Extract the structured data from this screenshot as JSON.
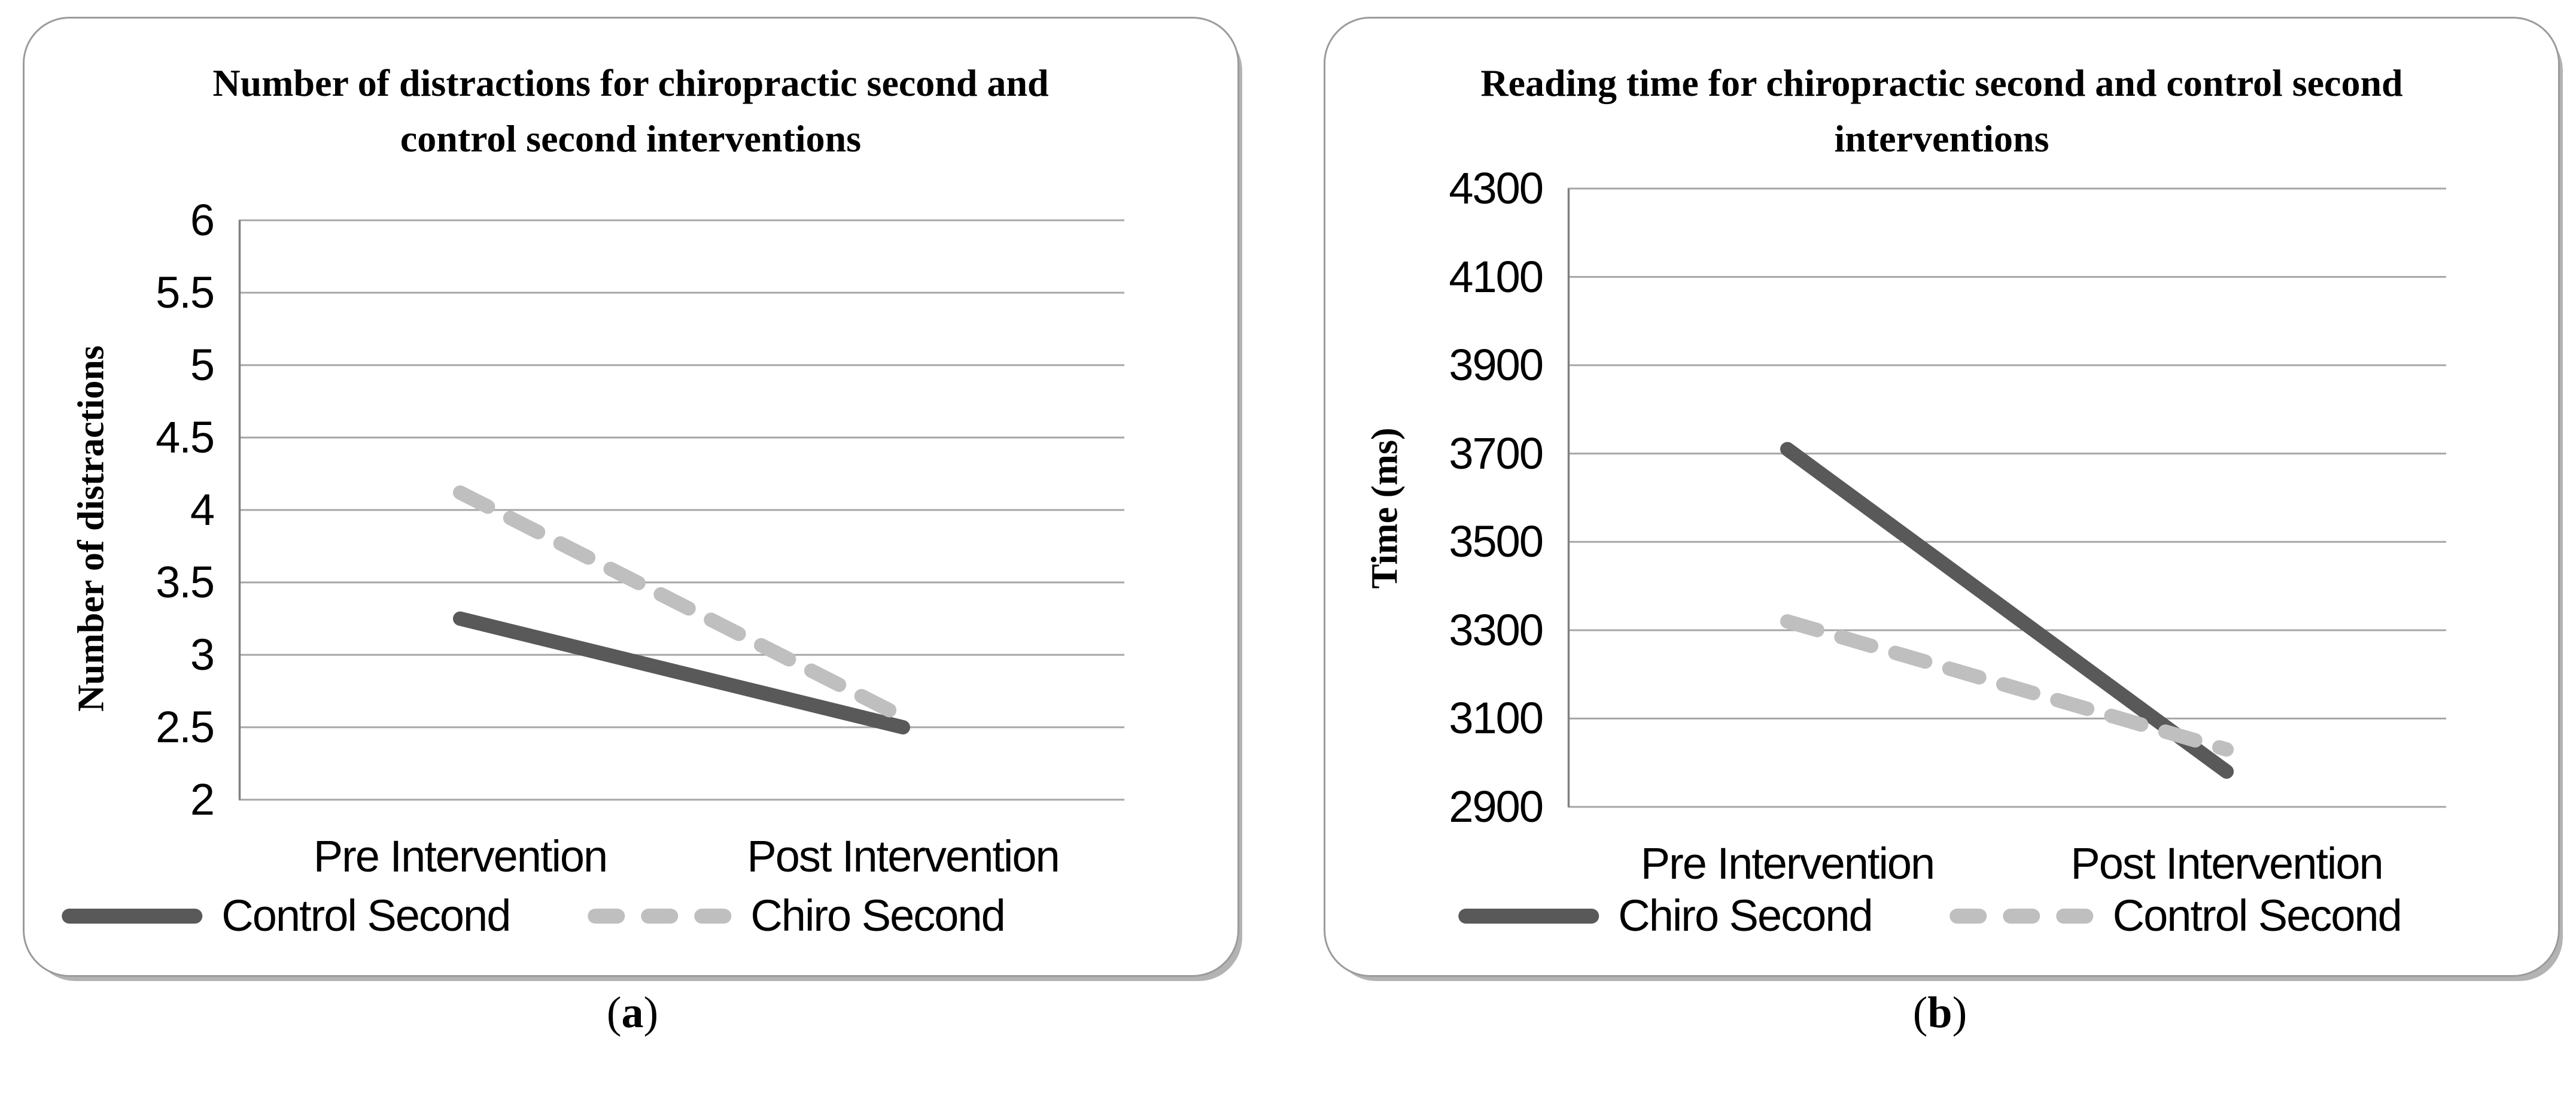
{
  "figure": {
    "captions": [
      {
        "open": "(",
        "letter": "a",
        "close": ")"
      },
      {
        "open": "(",
        "letter": "b",
        "close": ")"
      }
    ]
  },
  "colors": {
    "gridline": "#a6a6a6",
    "axis_line": "#808080",
    "dark_series": "#595959",
    "light_series": "#bfbfbf",
    "panel_border": "#9b9b9b",
    "text": "#000000"
  },
  "chart_data": [
    {
      "type": "line",
      "title": "Number of distractions for chiropractic second and control second interventions",
      "xlabel": "",
      "ylabel": "Number of distractions",
      "categories": [
        "Pre Intervention",
        "Post Intervention"
      ],
      "ylim": [
        2,
        6
      ],
      "ytick_step": 0.5,
      "ytick_labels": [
        "6",
        "5.5",
        "5",
        "4.5",
        "4",
        "3.5",
        "3",
        "2.5",
        "2"
      ],
      "grid": true,
      "legend_position": "bottom",
      "series": [
        {
          "name": "Control Second",
          "style": "solid",
          "color": "#595959",
          "values": [
            3.25,
            2.5
          ]
        },
        {
          "name": "Chiro Second",
          "style": "dashed",
          "color": "#bfbfbf",
          "values": [
            4.12,
            2.57
          ]
        }
      ]
    },
    {
      "type": "line",
      "title": "Reading time for chiropractic second and control second interventions",
      "xlabel": "",
      "ylabel": "Time (ms)",
      "categories": [
        "Pre Intervention",
        "Post Intervention"
      ],
      "ylim": [
        2900,
        4300
      ],
      "ytick_step": 200,
      "ytick_labels": [
        "4300",
        "4100",
        "3900",
        "3700",
        "3500",
        "3300",
        "3100",
        "2900"
      ],
      "grid": true,
      "legend_position": "bottom",
      "series": [
        {
          "name": "Chiro Second",
          "style": "solid",
          "color": "#595959",
          "values": [
            3710,
            2980
          ]
        },
        {
          "name": "Control Second",
          "style": "dashed",
          "color": "#bfbfbf",
          "values": [
            3320,
            3030
          ]
        }
      ]
    }
  ]
}
